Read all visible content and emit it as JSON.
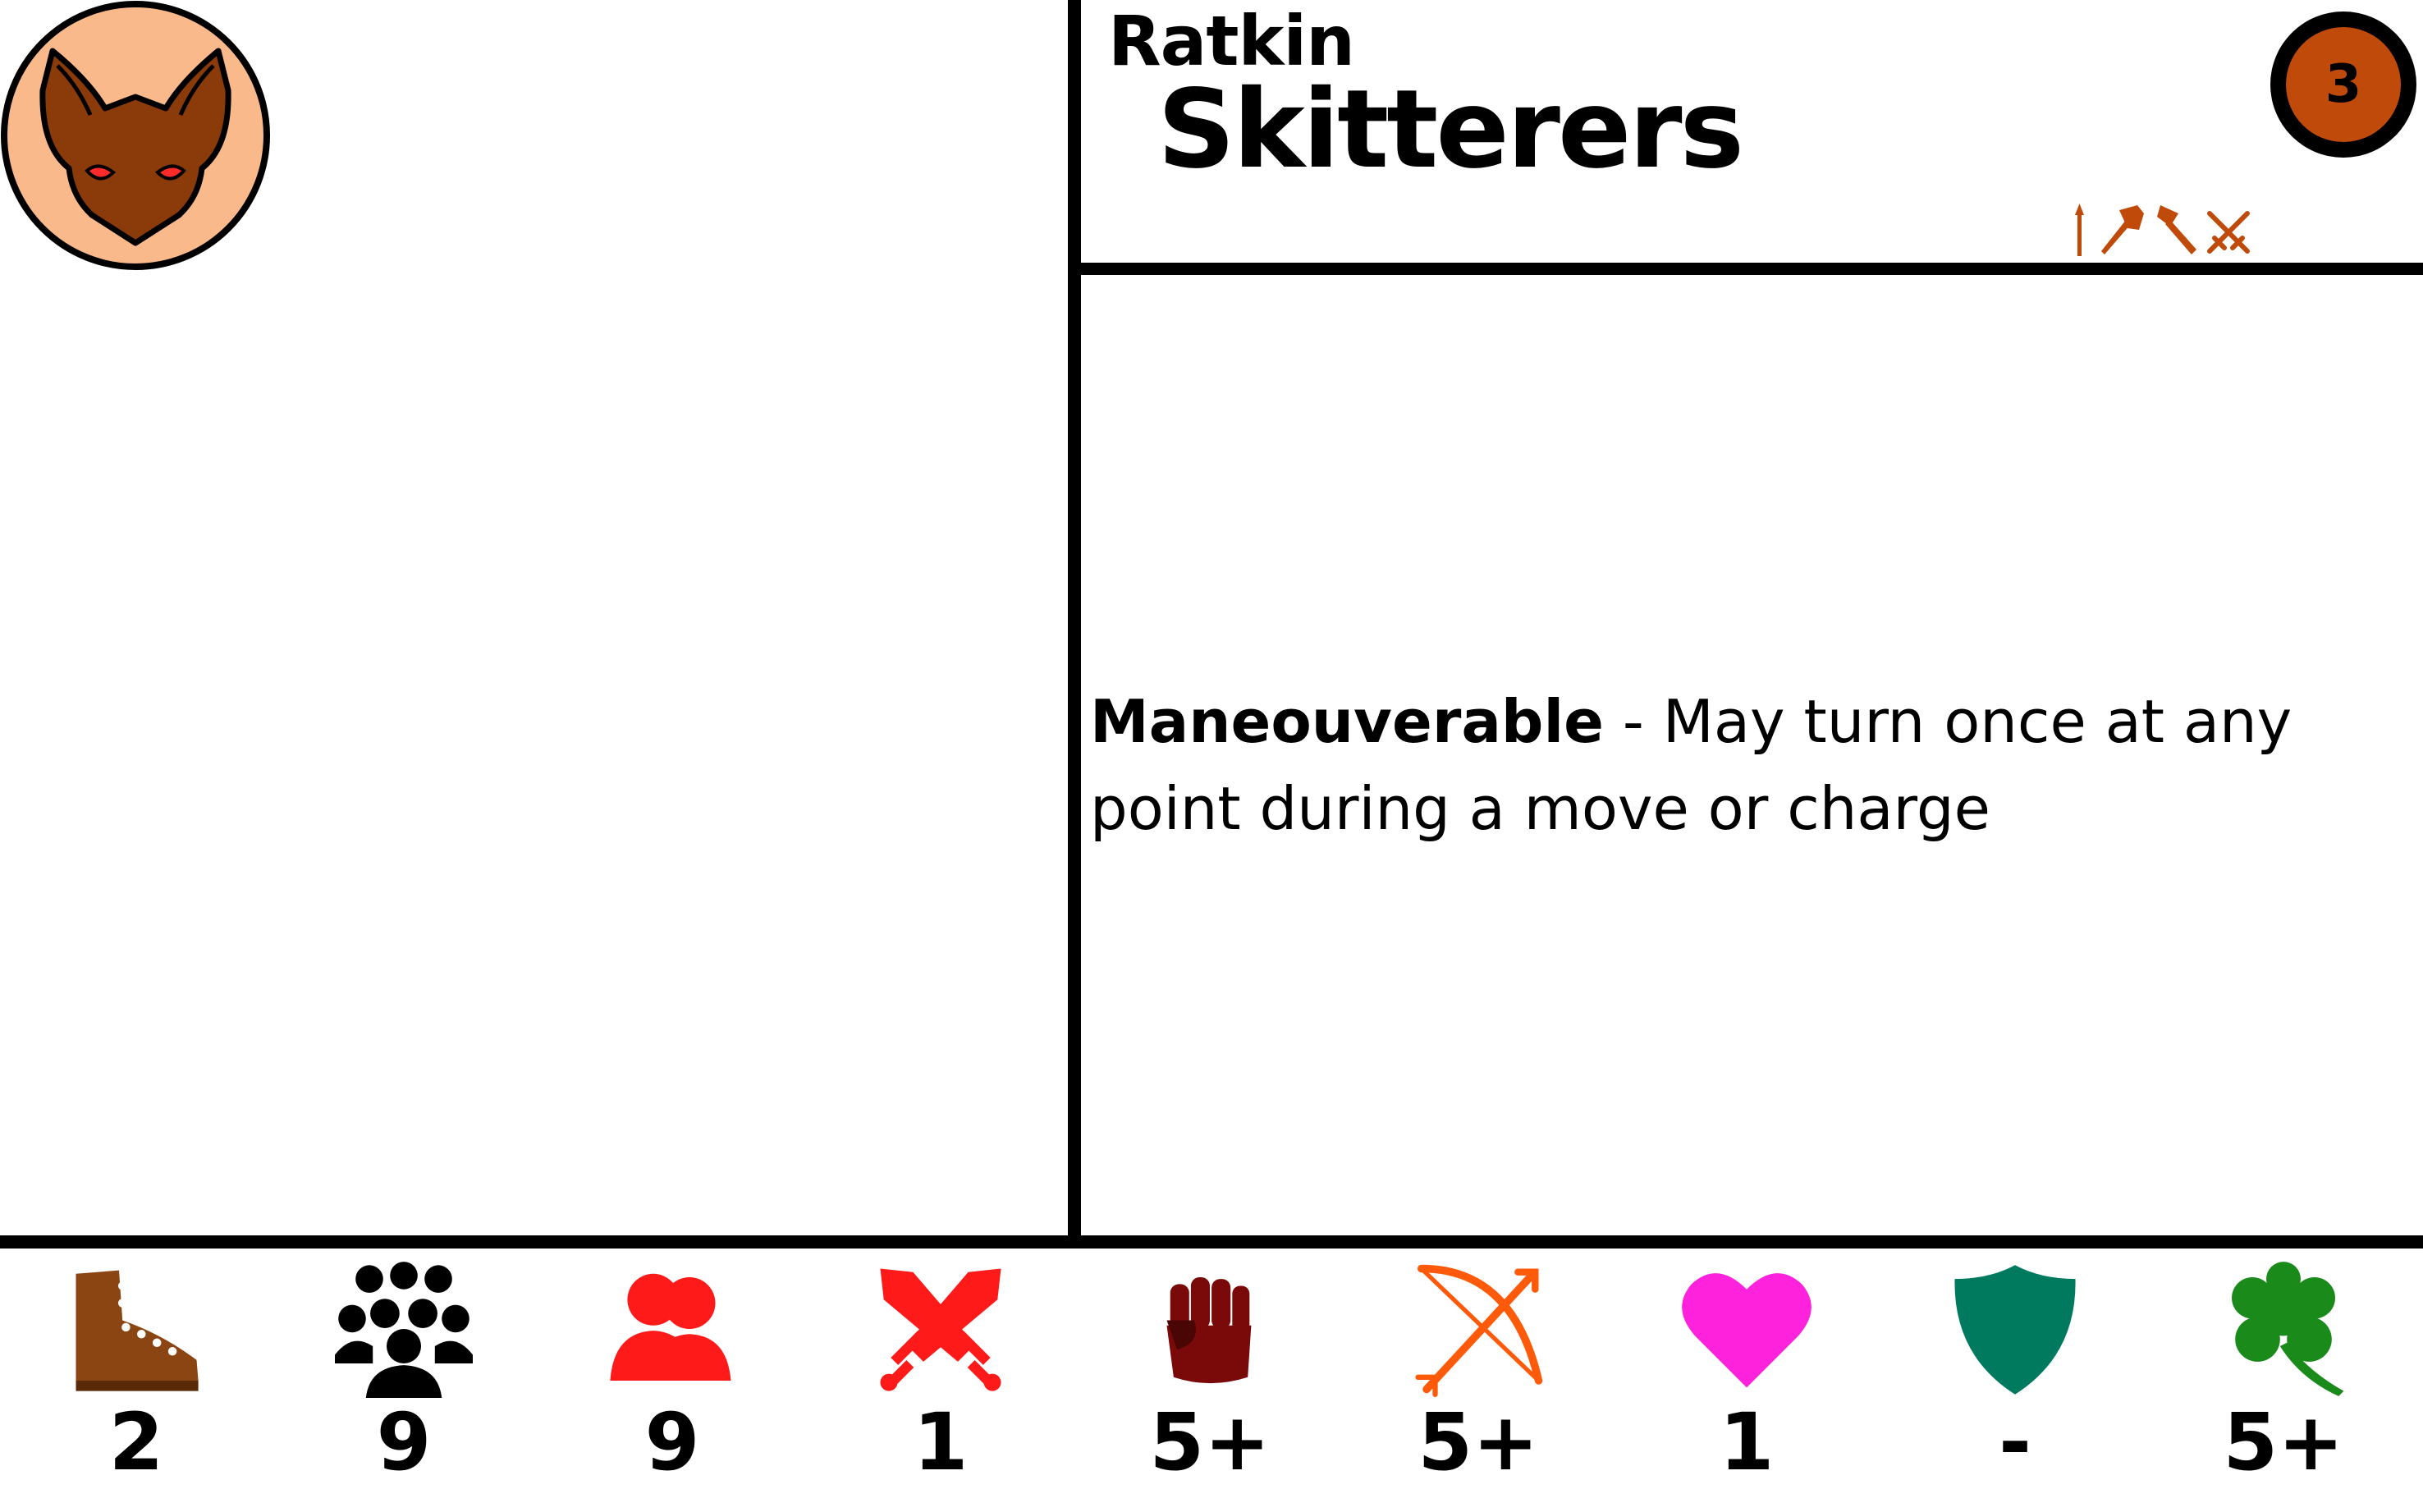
{
  "faction": {
    "name": "Ratkin",
    "badge_icon": "rat-head-icon",
    "badge_color": "#f9b98a",
    "head_color": "#8b3a0a"
  },
  "unit": {
    "name": "Skitterers",
    "cost": "3",
    "cost_color": "#c04a0a",
    "weapon_icons": [
      "spear-icon",
      "hammer-icon",
      "axe-icon",
      "crossed-swords-icon"
    ],
    "weapon_icon_color": "#c04a0a"
  },
  "rules": [
    {
      "name": "Maneouverable",
      "separator": " - ",
      "text": "May turn once at any point during a move or charge"
    }
  ],
  "stats": [
    {
      "icon": "boot-icon",
      "value": "2",
      "color": "#8b4513"
    },
    {
      "icon": "group-icon",
      "value": "9",
      "color": "#000000"
    },
    {
      "icon": "two-persons-icon",
      "value": "9",
      "color": "#ff1a1a"
    },
    {
      "icon": "crossed-swords-icon",
      "value": "1",
      "color": "#ff1a1a"
    },
    {
      "icon": "fist-icon",
      "value": "5+",
      "color": "#7a0a0a"
    },
    {
      "icon": "bow-icon",
      "value": "5+",
      "color": "#ff5a0a"
    },
    {
      "icon": "heart-icon",
      "value": "1",
      "color": "#ff22dd"
    },
    {
      "icon": "shield-icon",
      "value": "-",
      "color": "#007a5e"
    },
    {
      "icon": "clover-icon",
      "value": "5+",
      "color": "#1a8a1a"
    }
  ]
}
